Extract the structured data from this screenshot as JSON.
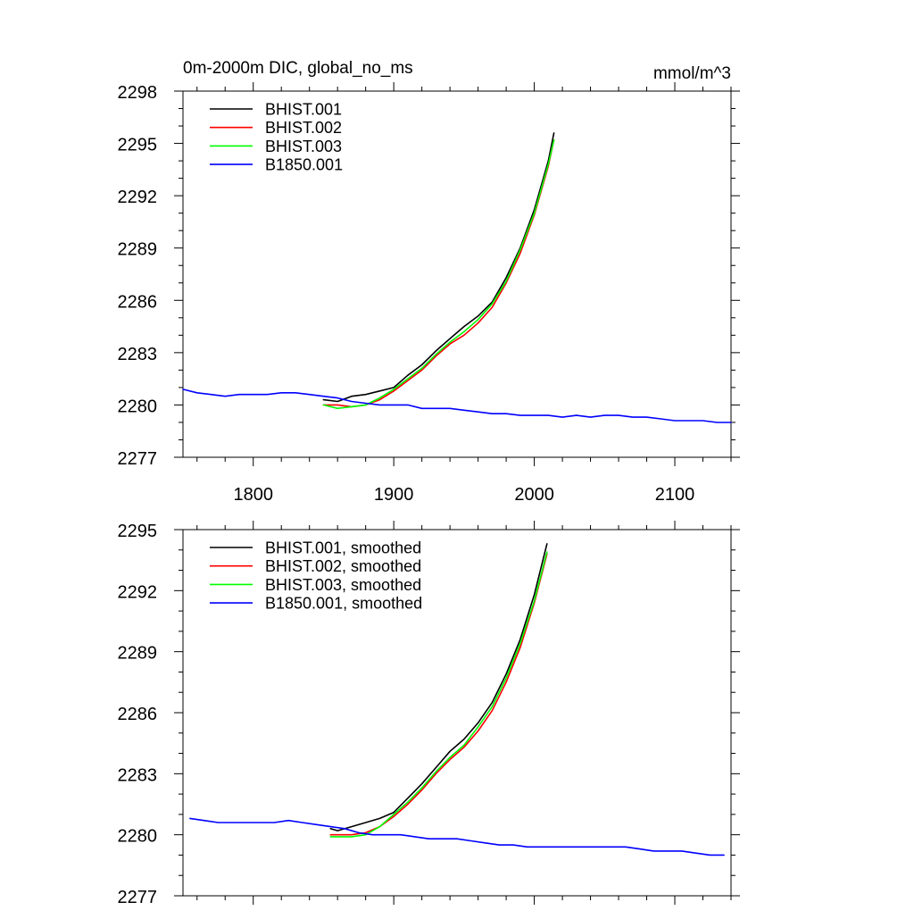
{
  "chart_data": [
    {
      "type": "line",
      "title": "0m-2000m DIC, global_no_ms",
      "units": "mmol/m^3",
      "xlim": [
        1750,
        2140
      ],
      "ylim": [
        2277,
        2298
      ],
      "xticks": [
        1800,
        1900,
        2000,
        2100
      ],
      "yticks": [
        2277,
        2280,
        2283,
        2286,
        2289,
        2292,
        2295,
        2298
      ],
      "xtick_labels": [
        "1800",
        "1900",
        "2000",
        "2100"
      ],
      "ytick_labels": [
        "2277",
        "2280",
        "2283",
        "2286",
        "2289",
        "2292",
        "2295",
        "2298"
      ],
      "legend_position": "top-left",
      "series": [
        {
          "name": "BHIST.001",
          "color": "#000000",
          "x": [
            1850,
            1860,
            1870,
            1880,
            1890,
            1900,
            1910,
            1920,
            1930,
            1940,
            1950,
            1960,
            1970,
            1980,
            1990,
            2000,
            2010,
            2014
          ],
          "y": [
            2280.3,
            2280.2,
            2280.5,
            2280.6,
            2280.8,
            2281.0,
            2281.7,
            2282.3,
            2283.1,
            2283.8,
            2284.5,
            2285.1,
            2285.9,
            2287.3,
            2289.0,
            2291.2,
            2294.0,
            2295.6
          ]
        },
        {
          "name": "BHIST.002",
          "color": "#ff0000",
          "x": [
            1850,
            1860,
            1870,
            1880,
            1890,
            1900,
            1910,
            1920,
            1930,
            1940,
            1950,
            1960,
            1970,
            1980,
            1990,
            2000,
            2010,
            2014
          ],
          "y": [
            2280.0,
            2280.0,
            2279.9,
            2280.0,
            2280.3,
            2280.8,
            2281.4,
            2282.0,
            2282.8,
            2283.5,
            2284.0,
            2284.7,
            2285.6,
            2287.0,
            2288.7,
            2290.9,
            2293.7,
            2295.2
          ]
        },
        {
          "name": "BHIST.003",
          "color": "#00ff00",
          "x": [
            1850,
            1860,
            1870,
            1880,
            1890,
            1900,
            1910,
            1920,
            1930,
            1940,
            1950,
            1960,
            1970,
            1980,
            1990,
            2000,
            2010,
            2014
          ],
          "y": [
            2280.0,
            2279.8,
            2279.9,
            2280.0,
            2280.4,
            2280.9,
            2281.5,
            2282.1,
            2282.9,
            2283.6,
            2284.2,
            2284.9,
            2285.8,
            2287.1,
            2288.9,
            2291.0,
            2293.8,
            2295.2
          ]
        },
        {
          "name": "B1850.001",
          "color": "#0000ff",
          "x": [
            1750,
            1760,
            1770,
            1780,
            1790,
            1800,
            1810,
            1820,
            1830,
            1840,
            1850,
            1860,
            1870,
            1880,
            1890,
            1900,
            1910,
            1920,
            1930,
            1940,
            1950,
            1960,
            1970,
            1980,
            1990,
            2000,
            2010,
            2020,
            2030,
            2040,
            2050,
            2060,
            2070,
            2080,
            2090,
            2100,
            2110,
            2120,
            2130,
            2140
          ],
          "y": [
            2280.9,
            2280.7,
            2280.6,
            2280.5,
            2280.6,
            2280.6,
            2280.6,
            2280.7,
            2280.7,
            2280.6,
            2280.5,
            2280.4,
            2280.2,
            2280.1,
            2280.0,
            2280.0,
            2280.0,
            2279.8,
            2279.8,
            2279.8,
            2279.7,
            2279.6,
            2279.5,
            2279.5,
            2279.4,
            2279.4,
            2279.4,
            2279.3,
            2279.4,
            2279.3,
            2279.4,
            2279.4,
            2279.3,
            2279.3,
            2279.2,
            2279.1,
            2279.1,
            2279.1,
            2279.0,
            2279.0
          ]
        }
      ]
    },
    {
      "type": "line",
      "title": "",
      "xlim": [
        1750,
        2140
      ],
      "ylim": [
        2277,
        2295
      ],
      "xticks": [
        1800,
        1900,
        2000,
        2100
      ],
      "yticks": [
        2277,
        2280,
        2283,
        2286,
        2289,
        2292,
        2295
      ],
      "xtick_labels": [],
      "ytick_labels": [
        "2277",
        "2280",
        "2283",
        "2286",
        "2289",
        "2292",
        "2295"
      ],
      "legend_position": "top-left",
      "series": [
        {
          "name": "BHIST.001, smoothed",
          "color": "#000000",
          "x": [
            1855,
            1860,
            1870,
            1880,
            1890,
            1900,
            1910,
            1920,
            1930,
            1940,
            1950,
            1960,
            1970,
            1980,
            1990,
            2000,
            2009
          ],
          "y": [
            2280.3,
            2280.2,
            2280.4,
            2280.6,
            2280.8,
            2281.1,
            2281.8,
            2282.5,
            2283.3,
            2284.1,
            2284.7,
            2285.5,
            2286.5,
            2287.9,
            2289.6,
            2291.8,
            2294.3
          ]
        },
        {
          "name": "BHIST.002, smoothed",
          "color": "#ff0000",
          "x": [
            1855,
            1860,
            1870,
            1880,
            1890,
            1900,
            1910,
            1920,
            1930,
            1940,
            1950,
            1960,
            1970,
            1980,
            1990,
            2000,
            2009
          ],
          "y": [
            2280.0,
            2280.0,
            2280.0,
            2280.1,
            2280.4,
            2280.9,
            2281.5,
            2282.2,
            2283.0,
            2283.7,
            2284.3,
            2285.1,
            2286.1,
            2287.5,
            2289.2,
            2291.4,
            2293.8
          ]
        },
        {
          "name": "BHIST.003, smoothed",
          "color": "#00ff00",
          "x": [
            1855,
            1860,
            1870,
            1880,
            1890,
            1900,
            1910,
            1920,
            1930,
            1940,
            1950,
            1960,
            1970,
            1980,
            1990,
            2000,
            2009
          ],
          "y": [
            2279.9,
            2279.9,
            2279.9,
            2280.0,
            2280.4,
            2281.0,
            2281.6,
            2282.3,
            2283.1,
            2283.8,
            2284.4,
            2285.3,
            2286.3,
            2287.7,
            2289.4,
            2291.5,
            2293.9
          ]
        },
        {
          "name": "B1850.001, smoothed",
          "color": "#0000ff",
          "x": [
            1755,
            1765,
            1775,
            1785,
            1795,
            1805,
            1815,
            1825,
            1835,
            1845,
            1855,
            1865,
            1875,
            1885,
            1895,
            1905,
            1915,
            1925,
            1935,
            1945,
            1955,
            1965,
            1975,
            1985,
            1995,
            2005,
            2015,
            2025,
            2035,
            2045,
            2055,
            2065,
            2075,
            2085,
            2095,
            2105,
            2115,
            2125,
            2135
          ],
          "y": [
            2280.8,
            2280.7,
            2280.6,
            2280.6,
            2280.6,
            2280.6,
            2280.6,
            2280.7,
            2280.6,
            2280.5,
            2280.4,
            2280.3,
            2280.1,
            2280.0,
            2280.0,
            2280.0,
            2279.9,
            2279.8,
            2279.8,
            2279.8,
            2279.7,
            2279.6,
            2279.5,
            2279.5,
            2279.4,
            2279.4,
            2279.4,
            2279.4,
            2279.4,
            2279.4,
            2279.4,
            2279.4,
            2279.3,
            2279.2,
            2279.2,
            2279.2,
            2279.1,
            2279.0,
            2279.0
          ]
        }
      ]
    }
  ]
}
